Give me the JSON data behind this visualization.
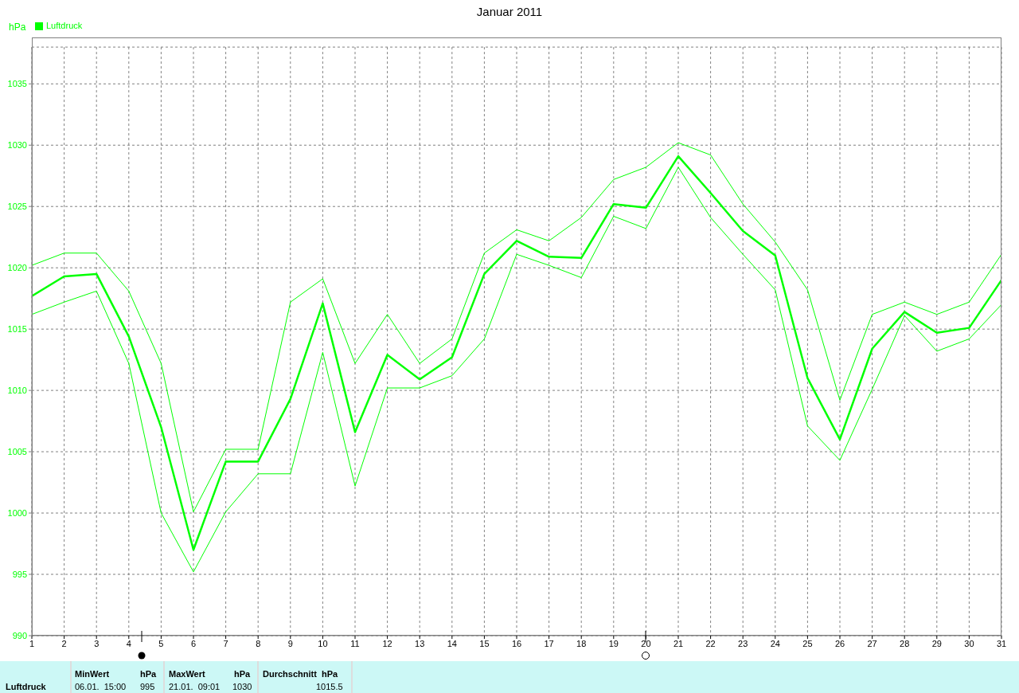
{
  "chart_data": {
    "type": "line",
    "title": "Januar 2011",
    "ylabel": "hPa",
    "x": [
      1,
      2,
      3,
      4,
      5,
      6,
      7,
      8,
      9,
      10,
      11,
      12,
      13,
      14,
      15,
      16,
      17,
      18,
      19,
      20,
      21,
      22,
      23,
      24,
      25,
      26,
      27,
      28,
      29,
      30,
      31
    ],
    "series": [
      {
        "name": "Luftdruck",
        "color": "#00ff00",
        "values": [
          1017.7,
          1019.3,
          1019.5,
          1014.4,
          1007,
          997,
          1004.2,
          1004.2,
          1009.3,
          1017.1,
          1006.6,
          1012.9,
          1010.9,
          1012.7,
          1019.5,
          1022.2,
          1020.9,
          1020.8,
          1025.2,
          1024.9,
          1029.1,
          1026.1,
          1023,
          1021,
          1011,
          1006,
          1013.4,
          1016.4,
          1014.7,
          1015.1,
          1019
        ]
      },
      {
        "color": "#00ff00",
        "values": [
          1016.2,
          1017.2,
          1018.1,
          1012.2,
          1000,
          995.2,
          1000.1,
          1003.2,
          1003.2,
          1013.1,
          1002.2,
          1010.2,
          1010.2,
          1011.2,
          1014.2,
          1021.1,
          1020.2,
          1019.2,
          1024.2,
          1023.2,
          1028.2,
          1024.1,
          1021.1,
          1018.2,
          1007.1,
          1004.3,
          1010.1,
          1016.1,
          1013.2,
          1014.2,
          1017
        ]
      },
      {
        "color": "#00ff00",
        "values": [
          1020.2,
          1021.2,
          1021.2,
          1018.1,
          1012.2,
          1000.1,
          1005.2,
          1005.2,
          1017.2,
          1019.1,
          1012.2,
          1016.2,
          1012.2,
          1014.2,
          1021.2,
          1023.1,
          1022.2,
          1024.1,
          1027.2,
          1028.2,
          1030.2,
          1029.2,
          1025.2,
          1022.1,
          1018.2,
          1009.2,
          1016.2,
          1017.2,
          1016.2,
          1017.2,
          1021.1
        ]
      }
    ],
    "xlim": [
      1,
      31
    ],
    "xticks": [
      1,
      2,
      3,
      4,
      5,
      6,
      7,
      8,
      9,
      10,
      11,
      12,
      13,
      14,
      15,
      16,
      17,
      18,
      19,
      20,
      21,
      22,
      23,
      24,
      25,
      26,
      27,
      28,
      29,
      30,
      31
    ],
    "ylim": [
      990,
      1038
    ],
    "yticks": [
      990,
      995,
      1000,
      1005,
      1010,
      1015,
      1020,
      1025,
      1030,
      1035
    ],
    "grid": true,
    "legend": "top left",
    "marker": "none",
    "line_style": "solid",
    "annotations": [
      "MinWert",
      "hPa",
      "MaxWert",
      "hPa",
      "Durchschnitt  hPa",
      "Luftdruck",
      "06.01.  15:00",
      "995",
      "21.01.  09:01",
      "1030",
      "1015.5"
    ]
  }
}
